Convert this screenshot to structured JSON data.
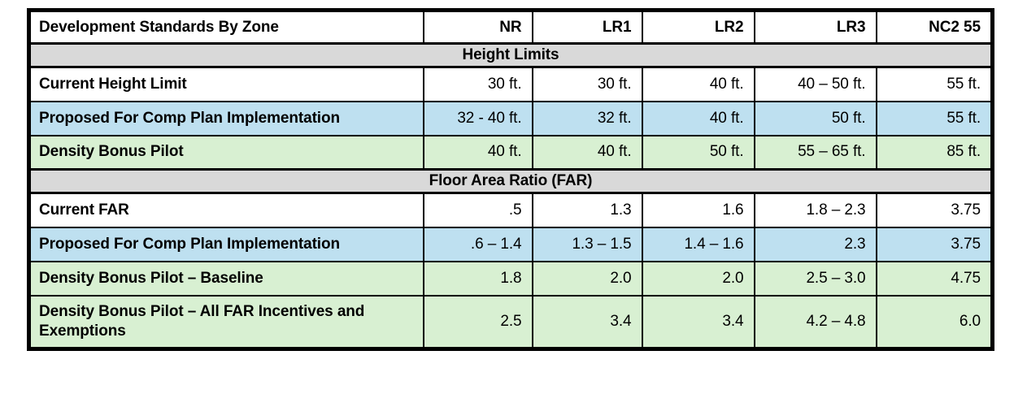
{
  "table": {
    "title": "Development Standards By Zone",
    "zones": [
      "NR",
      "LR1",
      "LR2",
      "LR3",
      "NC2 55"
    ],
    "sections": [
      {
        "title": "Height Limits",
        "rows": [
          {
            "label": "Current Height Limit",
            "style": "white",
            "values": [
              "30 ft.",
              "30 ft.",
              "40 ft.",
              "40 – 50 ft.",
              "55 ft."
            ]
          },
          {
            "label": "Proposed For Comp Plan Implementation",
            "style": "blue",
            "values": [
              "32 - 40 ft.",
              "32 ft.",
              "40 ft.",
              "50 ft.",
              "55 ft."
            ]
          },
          {
            "label": "Density Bonus Pilot",
            "style": "green",
            "values": [
              "40 ft.",
              "40 ft.",
              "50 ft.",
              "55 – 65 ft.",
              "85 ft."
            ]
          }
        ]
      },
      {
        "title": "Floor Area Ratio (FAR)",
        "rows": [
          {
            "label": "Current FAR",
            "style": "white",
            "values": [
              ".5",
              "1.3",
              "1.6",
              "1.8 – 2.3",
              "3.75"
            ]
          },
          {
            "label": "Proposed For Comp Plan Implementation",
            "style": "blue",
            "values": [
              ".6 – 1.4",
              "1.3 – 1.5",
              "1.4 – 1.6",
              "2.3",
              "3.75"
            ]
          },
          {
            "label": "Density Bonus Pilot – Baseline",
            "style": "green",
            "values": [
              "1.8",
              "2.0",
              "2.0",
              "2.5 – 3.0",
              "4.75"
            ]
          },
          {
            "label": "Density Bonus Pilot – All FAR Incentives and Exemptions",
            "style": "green",
            "values": [
              "2.5",
              "3.4",
              "3.4",
              "4.2 – 4.8",
              "6.0"
            ]
          }
        ]
      }
    ]
  },
  "colors": {
    "row_blue": "#BEE0F0",
    "row_green": "#D8F0D2",
    "band_gray": "#D9D9D9",
    "border": "#000000",
    "text": "#000000"
  }
}
